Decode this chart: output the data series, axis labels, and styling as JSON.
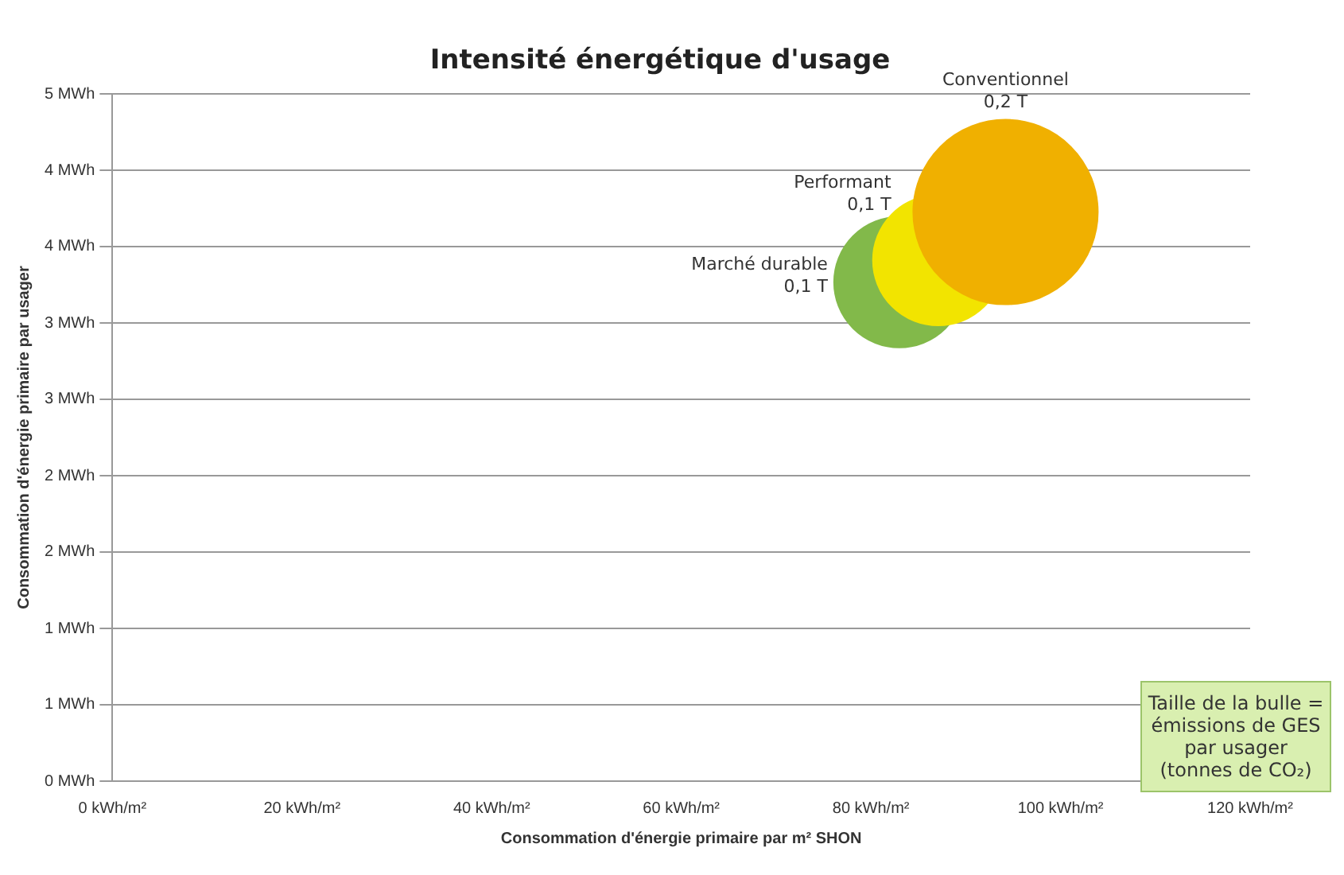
{
  "chart_data": {
    "type": "bubble",
    "title": "Intensité énergétique d'usage",
    "xlabel": "Consommation d'énergie primaire par m² SHON",
    "ylabel": "Consommation d'énergie primaire par usager",
    "xlim": [
      0,
      120
    ],
    "xticks": [
      {
        "value": 0,
        "label": "0 kWh/m²"
      },
      {
        "value": 20,
        "label": "20 kWh/m²"
      },
      {
        "value": 40,
        "label": "40 kWh/m²"
      },
      {
        "value": 60,
        "label": "60 kWh/m²"
      },
      {
        "value": 80,
        "label": "80 kWh/m²"
      },
      {
        "value": 100,
        "label": "100 kWh/m²"
      },
      {
        "value": 120,
        "label": "120 kWh/m²"
      }
    ],
    "ylim": [
      0,
      5
    ],
    "yticks": [
      {
        "value": 0,
        "label": "0 MWh"
      },
      {
        "value": 0.556,
        "label": "1 MWh"
      },
      {
        "value": 1.111,
        "label": "1 MWh"
      },
      {
        "value": 1.667,
        "label": "2 MWh"
      },
      {
        "value": 2.222,
        "label": "2 MWh"
      },
      {
        "value": 2.778,
        "label": "3 MWh"
      },
      {
        "value": 3.333,
        "label": "3 MWh"
      },
      {
        "value": 3.889,
        "label": "4 MWh"
      },
      {
        "value": 4.444,
        "label": "4 MWh"
      },
      {
        "value": 5,
        "label": "5 MWh"
      }
    ],
    "grid": "y",
    "legend": false,
    "series": [
      {
        "name": "Conventionnel",
        "color": "#f0b000",
        "x": [
          94.2
        ],
        "values": [
          4.14
        ],
        "sizes": [
          0.2
        ],
        "value_labels": [
          "0,2 T"
        ]
      },
      {
        "name": "Performant",
        "color": "#f2e400",
        "x": [
          87.1
        ],
        "values": [
          3.79
        ],
        "sizes": [
          0.1
        ],
        "value_labels": [
          "0,1 T"
        ]
      },
      {
        "name": "Marché durable",
        "color": "#82b94a",
        "x": [
          83
        ],
        "values": [
          3.63
        ],
        "sizes": [
          0.1
        ],
        "value_labels": [
          "0,1 T"
        ]
      }
    ],
    "annotations": [
      "Taille de la bulle = émissions de GES par usager (tonnes de CO₂)"
    ]
  }
}
